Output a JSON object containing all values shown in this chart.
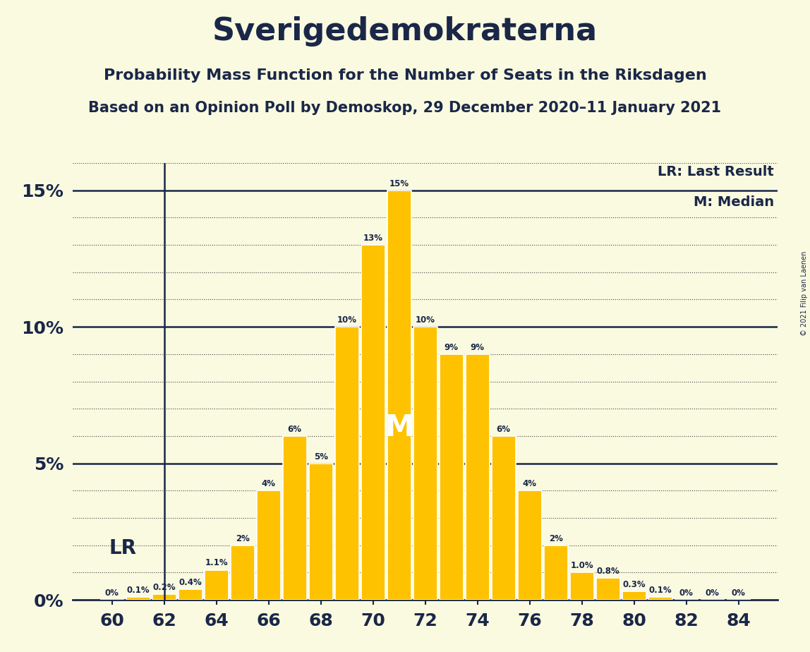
{
  "title": "Sverigedemokraterna",
  "subtitle1": "Probability Mass Function for the Number of Seats in the Riksdagen",
  "subtitle2": "Based on an Opinion Poll by Demoskop, 29 December 2020–11 January 2021",
  "copyright": "© 2021 Filip van Laenen",
  "legend_lr": "LR: Last Result",
  "legend_m": "M: Median",
  "seats": [
    60,
    61,
    62,
    63,
    64,
    65,
    66,
    67,
    68,
    69,
    70,
    71,
    72,
    73,
    74,
    75,
    76,
    77,
    78,
    79,
    80,
    81,
    82,
    83,
    84
  ],
  "probabilities": [
    0.0,
    0.001,
    0.002,
    0.004,
    0.011,
    0.02,
    0.04,
    0.06,
    0.05,
    0.1,
    0.13,
    0.15,
    0.1,
    0.09,
    0.09,
    0.06,
    0.04,
    0.02,
    0.01,
    0.008,
    0.003,
    0.001,
    0.0,
    0.0,
    0.0
  ],
  "bar_color": "#FFC200",
  "bar_edge_color": "#FFFFFF",
  "background_color": "#FAFAE0",
  "text_color": "#1a2748",
  "lr_seat": 62,
  "median_seat": 71,
  "ylim": [
    0,
    0.16
  ],
  "yticks": [
    0.0,
    0.01,
    0.02,
    0.03,
    0.04,
    0.05,
    0.06,
    0.07,
    0.08,
    0.09,
    0.1,
    0.11,
    0.12,
    0.13,
    0.14,
    0.15,
    0.16
  ],
  "ytick_labels_show": [
    0.0,
    0.05,
    0.1,
    0.15
  ],
  "xtick_positions": [
    60,
    62,
    64,
    66,
    68,
    70,
    72,
    74,
    76,
    78,
    80,
    82,
    84
  ],
  "bar_labels": [
    "0%",
    "0.1%",
    "0.2%",
    "0.4%",
    "1.1%",
    "2%",
    "4%",
    "6%",
    "5%",
    "10%",
    "13%",
    "15%",
    "10%",
    "9%",
    "9%",
    "6%",
    "4%",
    "2%",
    "1.0%",
    "0.8%",
    "0.3%",
    "0.1%",
    "0%",
    "0%",
    "0%"
  ]
}
